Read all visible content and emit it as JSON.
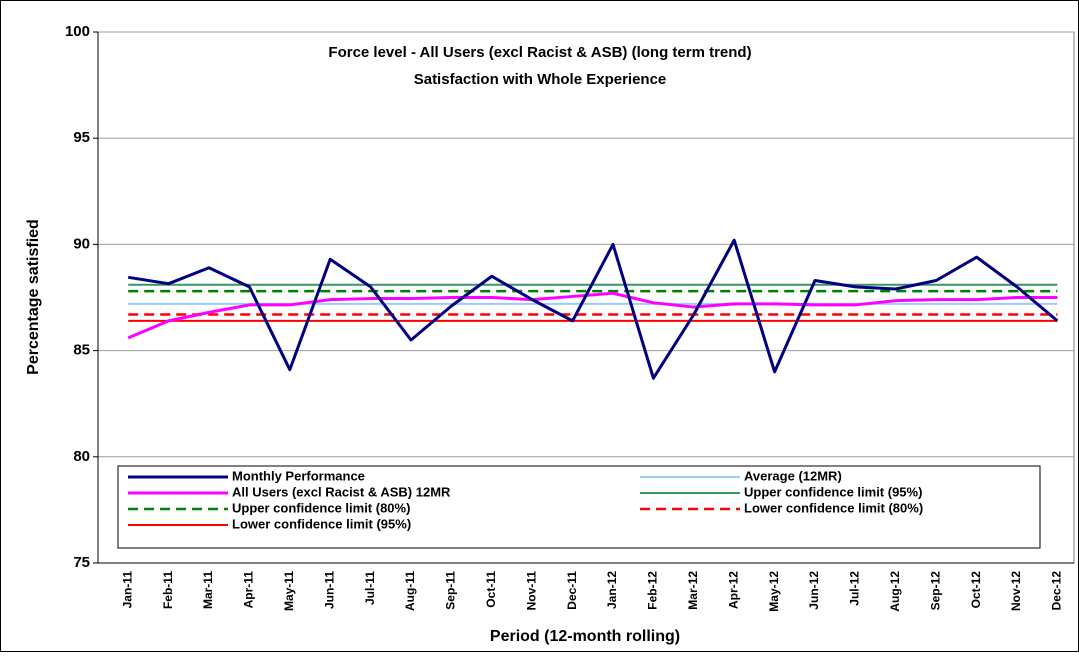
{
  "chart_data": {
    "type": "line",
    "title": "Force level - All Users (excl Racist & ASB) (long term trend)",
    "subtitle": "Satisfaction with Whole Experience",
    "y_label": "Percentage satisfied",
    "x_label": "Period (12-month rolling)",
    "categories": [
      "Jan-11",
      "Feb-11",
      "Mar-11",
      "Apr-11",
      "May-11",
      "Jun-11",
      "Jul-11",
      "Aug-11",
      "Sep-11",
      "Oct-11",
      "Nov-11",
      "Dec-11",
      "Jan-12",
      "Feb-12",
      "Mar-12",
      "Apr-12",
      "May-12",
      "Jun-12",
      "Jul-12",
      "Aug-12",
      "Sep-12",
      "Oct-12",
      "Nov-12",
      "Dec-12"
    ],
    "ylim": [
      75,
      100
    ],
    "yticks": [
      75,
      80,
      85,
      90,
      95,
      100
    ],
    "grid": true,
    "series": [
      {
        "name": "Monthly Performance",
        "color": "#000080",
        "width": 3,
        "dashed": false,
        "values": [
          88.45,
          88.15,
          88.9,
          88.0,
          84.1,
          89.3,
          88.0,
          85.5,
          87.1,
          88.5,
          87.4,
          86.4,
          90.0,
          83.7,
          86.7,
          90.2,
          84.0,
          88.3,
          88.0,
          87.9,
          88.3,
          89.4,
          88.0,
          86.4
        ]
      },
      {
        "name": "Average (12MR)",
        "color": "#99ccff",
        "width": 2,
        "dashed": false,
        "values": [
          87.2,
          87.2,
          87.2,
          87.2,
          87.2,
          87.2,
          87.2,
          87.2,
          87.2,
          87.2,
          87.2,
          87.2,
          87.2,
          87.2,
          87.2,
          87.2,
          87.2,
          87.2,
          87.2,
          87.2,
          87.2,
          87.2,
          87.2,
          87.2
        ]
      },
      {
        "name": "All Users (excl Racist & ASB) 12MR",
        "color": "#ff00ff",
        "width": 3,
        "dashed": false,
        "values": [
          85.6,
          86.4,
          86.8,
          87.15,
          87.15,
          87.4,
          87.45,
          87.45,
          87.5,
          87.5,
          87.4,
          87.55,
          87.7,
          87.25,
          87.05,
          87.2,
          87.2,
          87.15,
          87.15,
          87.35,
          87.4,
          87.4,
          87.5,
          87.5
        ]
      },
      {
        "name": "Upper confidence limit (95%)",
        "color": "#339966",
        "width": 2,
        "dashed": false,
        "values": [
          88.1,
          88.1,
          88.1,
          88.1,
          88.1,
          88.1,
          88.1,
          88.1,
          88.1,
          88.1,
          88.1,
          88.1,
          88.1,
          88.1,
          88.1,
          88.1,
          88.1,
          88.1,
          88.1,
          88.1,
          88.1,
          88.1,
          88.1,
          88.1
        ]
      },
      {
        "name": "Upper confidence limit (80%)",
        "color": "#008000",
        "width": 2.5,
        "dashed": true,
        "values": [
          87.8,
          87.8,
          87.8,
          87.8,
          87.8,
          87.8,
          87.8,
          87.8,
          87.8,
          87.8,
          87.8,
          87.8,
          87.8,
          87.8,
          87.8,
          87.8,
          87.8,
          87.8,
          87.8,
          87.8,
          87.8,
          87.8,
          87.8,
          87.8
        ]
      },
      {
        "name": "Lower confidence limit (80%)",
        "color": "#ff0000",
        "width": 2.5,
        "dashed": true,
        "values": [
          86.7,
          86.7,
          86.7,
          86.7,
          86.7,
          86.7,
          86.7,
          86.7,
          86.7,
          86.7,
          86.7,
          86.7,
          86.7,
          86.7,
          86.7,
          86.7,
          86.7,
          86.7,
          86.7,
          86.7,
          86.7,
          86.7,
          86.7,
          86.7
        ]
      },
      {
        "name": "Lower confidence limit (95%)",
        "color": "#ff0000",
        "width": 2,
        "dashed": false,
        "values": [
          86.4,
          86.4,
          86.4,
          86.4,
          86.4,
          86.4,
          86.4,
          86.4,
          86.4,
          86.4,
          86.4,
          86.4,
          86.4,
          86.4,
          86.4,
          86.4,
          86.4,
          86.4,
          86.4,
          86.4,
          86.4,
          86.4,
          86.4,
          86.4
        ]
      }
    ]
  }
}
